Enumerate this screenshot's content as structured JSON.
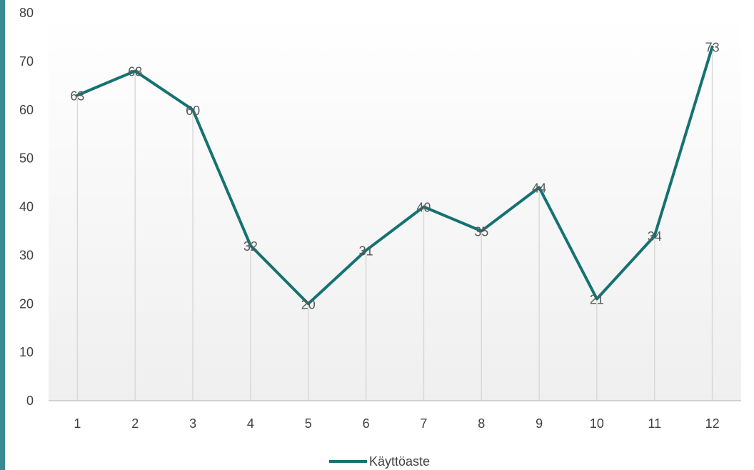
{
  "colors": {
    "series": "#167272",
    "accent_bar": "#3a8a93",
    "drop_lines": "#d9d9d9",
    "axis_line": "#bfbfbf",
    "plot_bg_top": "#ffffff",
    "plot_bg_bottom": "#efefef"
  },
  "chart_data": {
    "type": "line",
    "title": "",
    "xlabel": "",
    "ylabel": "",
    "categories": [
      "1",
      "2",
      "3",
      "4",
      "5",
      "6",
      "7",
      "8",
      "9",
      "10",
      "11",
      "12"
    ],
    "series": [
      {
        "name": "Käyttöaste",
        "values": [
          63,
          68,
          60,
          32,
          20,
          31,
          40,
          35,
          44,
          21,
          34,
          73
        ]
      }
    ],
    "ylim": [
      0,
      80
    ],
    "yticks": [
      0,
      10,
      20,
      30,
      40,
      50,
      60,
      70,
      80
    ],
    "data_labels": true,
    "drop_lines": true,
    "legend_position": "bottom",
    "grid": false
  }
}
